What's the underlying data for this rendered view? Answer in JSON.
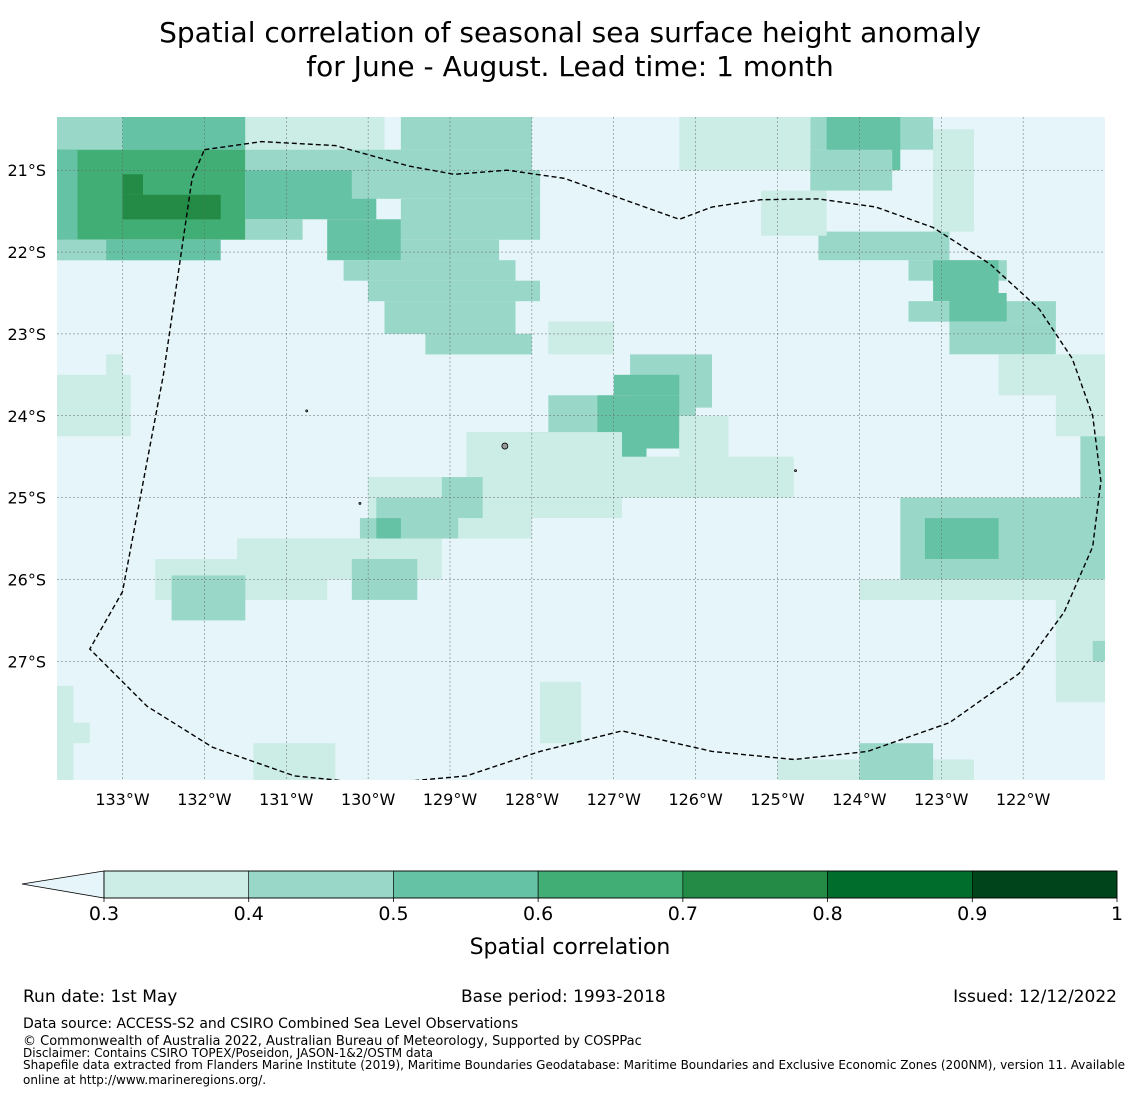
{
  "title": {
    "line1": "Spatial correlation of seasonal sea surface height anomaly",
    "line2": "for June - August. Lead time: 1 month"
  },
  "map": {
    "lon_range": [
      -133.8,
      -121.0
    ],
    "lat_range": [
      -28.45,
      -20.35
    ],
    "lon_ticks": [
      {
        "value": -133,
        "label": "133°W"
      },
      {
        "value": -132,
        "label": "132°W"
      },
      {
        "value": -131,
        "label": "131°W"
      },
      {
        "value": -130,
        "label": "130°W"
      },
      {
        "value": -129,
        "label": "129°W"
      },
      {
        "value": -128,
        "label": "128°W"
      },
      {
        "value": -127,
        "label": "127°W"
      },
      {
        "value": -126,
        "label": "126°W"
      },
      {
        "value": -125,
        "label": "125°W"
      },
      {
        "value": -124,
        "label": "124°W"
      },
      {
        "value": -123,
        "label": "123°W"
      },
      {
        "value": -122,
        "label": "122°W"
      }
    ],
    "lat_ticks": [
      {
        "value": -21,
        "label": "21°S"
      },
      {
        "value": -22,
        "label": "22°S"
      },
      {
        "value": -23,
        "label": "23°S"
      },
      {
        "value": -24,
        "label": "24°S"
      },
      {
        "value": -25,
        "label": "25°S"
      },
      {
        "value": -26,
        "label": "26°S"
      },
      {
        "value": -27,
        "label": "27°S"
      }
    ],
    "grid": true,
    "background_color": "#e5f5f9",
    "eez_boundary": [
      [
        -132.0,
        -20.75
      ],
      [
        -131.3,
        -20.65
      ],
      [
        -130.4,
        -20.7
      ],
      [
        -129.5,
        -20.95
      ],
      [
        -128.95,
        -21.05
      ],
      [
        -128.3,
        -21.0
      ],
      [
        -127.6,
        -21.1
      ],
      [
        -126.9,
        -21.35
      ],
      [
        -126.2,
        -21.6
      ],
      [
        -125.8,
        -21.45
      ],
      [
        -125.2,
        -21.36
      ],
      [
        -124.5,
        -21.35
      ],
      [
        -123.8,
        -21.45
      ],
      [
        -123.1,
        -21.7
      ],
      [
        -122.4,
        -22.15
      ],
      [
        -121.8,
        -22.7
      ],
      [
        -121.4,
        -23.3
      ],
      [
        -121.15,
        -24.0
      ],
      [
        -121.05,
        -24.8
      ],
      [
        -121.15,
        -25.6
      ],
      [
        -121.5,
        -26.4
      ],
      [
        -122.05,
        -27.15
      ],
      [
        -122.9,
        -27.75
      ],
      [
        -123.9,
        -28.1
      ],
      [
        -124.8,
        -28.2
      ],
      [
        -125.8,
        -28.1
      ],
      [
        -126.9,
        -27.85
      ],
      [
        -127.9,
        -28.1
      ],
      [
        -128.8,
        -28.4
      ],
      [
        -129.9,
        -28.5
      ],
      [
        -130.9,
        -28.4
      ],
      [
        -131.9,
        -28.05
      ],
      [
        -132.7,
        -27.55
      ],
      [
        -133.4,
        -26.85
      ],
      [
        -133.0,
        -26.15
      ],
      [
        -132.5,
        -23.5
      ],
      [
        -132.15,
        -21.1
      ],
      [
        -132.0,
        -20.75
      ]
    ],
    "islands": [
      {
        "lon": -128.33,
        "lat": -24.37,
        "size": 3
      },
      {
        "lon": -130.75,
        "lat": -23.94,
        "size": 1
      },
      {
        "lon": -130.1,
        "lat": -25.07,
        "size": 1
      },
      {
        "lon": -124.78,
        "lat": -24.67,
        "size": 1
      }
    ]
  },
  "chart_data": {
    "type": "heatmap",
    "x": "longitude",
    "y": "latitude",
    "value": "spatial correlation",
    "cell_deg": 0.25,
    "levels": [
      0.3,
      0.4,
      0.5,
      0.6,
      0.7,
      0.8,
      0.9,
      1.0
    ],
    "colors": [
      "#ccece6",
      "#99d8c9",
      "#66c2a4",
      "#41ae76",
      "#238b45",
      "#006d2c",
      "#00441b"
    ],
    "below_color": "#e5f5f9",
    "regions": [
      {
        "lon": [
          -133.8,
          -131.5
        ],
        "lat": [
          -20.75,
          -20.35
        ],
        "value": 0.45
      },
      {
        "lon": [
          -133.0,
          -131.5
        ],
        "lat": [
          -20.75,
          -20.35
        ],
        "value": 0.55
      },
      {
        "lon": [
          -131.5,
          -129.8
        ],
        "lat": [
          -20.75,
          -20.35
        ],
        "value": 0.35
      },
      {
        "lon": [
          -133.8,
          -131.5
        ],
        "lat": [
          -21.85,
          -20.75
        ],
        "value": 0.65
      },
      {
        "lon": [
          -133.0,
          -131.8
        ],
        "lat": [
          -21.6,
          -21.3
        ],
        "value": 0.75
      },
      {
        "lon": [
          -133.0,
          -132.75
        ],
        "lat": [
          -21.3,
          -21.05
        ],
        "value": 0.75
      },
      {
        "lon": [
          -133.8,
          -133.55
        ],
        "lat": [
          -21.85,
          -20.75
        ],
        "value": 0.55
      },
      {
        "lon": [
          -133.8,
          -133.2
        ],
        "lat": [
          -22.1,
          -21.85
        ],
        "value": 0.45
      },
      {
        "lon": [
          -133.2,
          -131.8
        ],
        "lat": [
          -22.1,
          -21.85
        ],
        "value": 0.55
      },
      {
        "lon": [
          -131.5,
          -129.9
        ],
        "lat": [
          -21.6,
          -21.0
        ],
        "value": 0.55
      },
      {
        "lon": [
          -131.5,
          -130.8
        ],
        "lat": [
          -21.85,
          -21.6
        ],
        "value": 0.45
      },
      {
        "lon": [
          -130.5,
          -129.6
        ],
        "lat": [
          -22.1,
          -21.6
        ],
        "value": 0.55
      },
      {
        "lon": [
          -131.5,
          -128.0
        ],
        "lat": [
          -21.0,
          -20.75
        ],
        "value": 0.45
      },
      {
        "lon": [
          -129.6,
          -128.0
        ],
        "lat": [
          -20.75,
          -20.35
        ],
        "value": 0.45
      },
      {
        "lon": [
          -130.2,
          -127.9
        ],
        "lat": [
          -21.35,
          -21.0
        ],
        "value": 0.45
      },
      {
        "lon": [
          -129.6,
          -127.9
        ],
        "lat": [
          -21.85,
          -21.35
        ],
        "value": 0.45
      },
      {
        "lon": [
          -129.6,
          -128.4
        ],
        "lat": [
          -22.1,
          -21.85
        ],
        "value": 0.45
      },
      {
        "lon": [
          -130.3,
          -128.2
        ],
        "lat": [
          -22.35,
          -22.1
        ],
        "value": 0.45
      },
      {
        "lon": [
          -130.0,
          -127.9
        ],
        "lat": [
          -22.6,
          -22.35
        ],
        "value": 0.45
      },
      {
        "lon": [
          -129.8,
          -128.2
        ],
        "lat": [
          -23.0,
          -22.6
        ],
        "value": 0.45
      },
      {
        "lon": [
          -129.3,
          -128.0
        ],
        "lat": [
          -23.25,
          -23.0
        ],
        "value": 0.45
      },
      {
        "lon": [
          -127.8,
          -127.0
        ],
        "lat": [
          -23.25,
          -22.85
        ],
        "value": 0.35
      },
      {
        "lon": [
          -126.8,
          -125.8
        ],
        "lat": [
          -23.9,
          -23.25
        ],
        "value": 0.45
      },
      {
        "lon": [
          -127.0,
          -126.2
        ],
        "lat": [
          -23.75,
          -23.5
        ],
        "value": 0.55
      },
      {
        "lon": [
          -127.8,
          -126.0
        ],
        "lat": [
          -24.2,
          -23.75
        ],
        "value": 0.45
      },
      {
        "lon": [
          -127.2,
          -126.2
        ],
        "lat": [
          -24.4,
          -23.75
        ],
        "value": 0.55
      },
      {
        "lon": [
          -127.5,
          -126.6
        ],
        "lat": [
          -24.75,
          -24.4
        ],
        "value": 0.55
      },
      {
        "lon": [
          -128.1,
          -127.1
        ],
        "lat": [
          -24.5,
          -24.2
        ],
        "value": 0.45
      },
      {
        "lon": [
          -127.9,
          -127.1
        ],
        "lat": [
          -24.75,
          -24.5
        ],
        "value": 0.45
      },
      {
        "lon": [
          -127.8,
          -126.9
        ],
        "lat": [
          -25.0,
          -24.75
        ],
        "value": 0.55
      },
      {
        "lon": [
          -126.9,
          -124.8
        ],
        "lat": [
          -25.0,
          -24.5
        ],
        "value": 0.35
      },
      {
        "lon": [
          -126.2,
          -125.6
        ],
        "lat": [
          -24.5,
          -24.0
        ],
        "value": 0.35
      },
      {
        "lon": [
          -128.8,
          -126.9
        ],
        "lat": [
          -25.25,
          -24.2
        ],
        "value": 0.35
      },
      {
        "lon": [
          -130.0,
          -128.0
        ],
        "lat": [
          -25.5,
          -24.75
        ],
        "value": 0.35
      },
      {
        "lon": [
          -129.1,
          -128.6
        ],
        "lat": [
          -25.25,
          -24.75
        ],
        "value": 0.45
      },
      {
        "lon": [
          -129.9,
          -128.9
        ],
        "lat": [
          -25.5,
          -25.0
        ],
        "value": 0.45
      },
      {
        "lon": [
          -130.1,
          -129.4
        ],
        "lat": [
          -25.75,
          -25.25
        ],
        "value": 0.45
      },
      {
        "lon": [
          -130.3,
          -129.8
        ],
        "lat": [
          -25.75,
          -25.5
        ],
        "value": 0.55
      },
      {
        "lon": [
          -129.9,
          -129.6
        ],
        "lat": [
          -26.0,
          -25.25
        ],
        "value": 0.55
      },
      {
        "lon": [
          -131.6,
          -129.1
        ],
        "lat": [
          -26.0,
          -25.5
        ],
        "value": 0.35
      },
      {
        "lon": [
          -130.2,
          -129.4
        ],
        "lat": [
          -26.25,
          -25.75
        ],
        "value": 0.45
      },
      {
        "lon": [
          -132.6,
          -130.5
        ],
        "lat": [
          -26.25,
          -25.75
        ],
        "value": 0.35
      },
      {
        "lon": [
          -132.4,
          -131.5
        ],
        "lat": [
          -26.5,
          -25.95
        ],
        "value": 0.45
      },
      {
        "lon": [
          -133.8,
          -132.9
        ],
        "lat": [
          -24.25,
          -23.5
        ],
        "value": 0.35
      },
      {
        "lon": [
          -133.2,
          -133.0
        ],
        "lat": [
          -23.5,
          -23.25
        ],
        "value": 0.35
      },
      {
        "lon": [
          -124.6,
          -123.1
        ],
        "lat": [
          -20.75,
          -20.35
        ],
        "value": 0.45
      },
      {
        "lon": [
          -126.2,
          -124.6
        ],
        "lat": [
          -21.0,
          -20.35
        ],
        "value": 0.35
      },
      {
        "lon": [
          -124.4,
          -123.5
        ],
        "lat": [
          -21.0,
          -20.35
        ],
        "value": 0.55
      },
      {
        "lon": [
          -124.6,
          -123.6
        ],
        "lat": [
          -21.25,
          -20.75
        ],
        "value": 0.45
      },
      {
        "lon": [
          -123.1,
          -122.6
        ],
        "lat": [
          -21.75,
          -20.5
        ],
        "value": 0.35
      },
      {
        "lon": [
          -124.5,
          -122.9
        ],
        "lat": [
          -22.1,
          -21.75
        ],
        "value": 0.45
      },
      {
        "lon": [
          -125.2,
          -124.4
        ],
        "lat": [
          -21.8,
          -21.25
        ],
        "value": 0.35
      },
      {
        "lon": [
          -123.4,
          -122.2
        ],
        "lat": [
          -22.35,
          -22.1
        ],
        "value": 0.45
      },
      {
        "lon": [
          -123.1,
          -122.3
        ],
        "lat": [
          -22.6,
          -22.1
        ],
        "value": 0.55
      },
      {
        "lon": [
          -123.4,
          -121.6
        ],
        "lat": [
          -22.85,
          -22.6
        ],
        "value": 0.45
      },
      {
        "lon": [
          -122.9,
          -122.2
        ],
        "lat": [
          -22.85,
          -22.5
        ],
        "value": 0.55
      },
      {
        "lon": [
          -122.9,
          -121.6
        ],
        "lat": [
          -23.25,
          -22.85
        ],
        "value": 0.45
      },
      {
        "lon": [
          -122.3,
          -121.0
        ],
        "lat": [
          -23.75,
          -23.25
        ],
        "value": 0.35
      },
      {
        "lon": [
          -121.6,
          -121.0
        ],
        "lat": [
          -24.25,
          -23.75
        ],
        "value": 0.35
      },
      {
        "lon": [
          -121.3,
          -121.0
        ],
        "lat": [
          -25.0,
          -24.25
        ],
        "value": 0.45
      },
      {
        "lon": [
          -123.5,
          -121.0
        ],
        "lat": [
          -26.0,
          -25.0
        ],
        "value": 0.45
      },
      {
        "lon": [
          -123.2,
          -122.3
        ],
        "lat": [
          -25.75,
          -25.25
        ],
        "value": 0.55
      },
      {
        "lon": [
          -124.0,
          -121.0
        ],
        "lat": [
          -26.25,
          -26.0
        ],
        "value": 0.35
      },
      {
        "lon": [
          -121.6,
          -121.0
        ],
        "lat": [
          -27.5,
          -26.25
        ],
        "value": 0.35
      },
      {
        "lon": [
          -121.15,
          -121.0
        ],
        "lat": [
          -27.0,
          -26.75
        ],
        "value": 0.45
      },
      {
        "lon": [
          -127.9,
          -127.4
        ],
        "lat": [
          -28.0,
          -27.25
        ],
        "value": 0.35
      },
      {
        "lon": [
          -133.8,
          -133.6
        ],
        "lat": [
          -28.45,
          -27.3
        ],
        "value": 0.35
      },
      {
        "lon": [
          -133.6,
          -133.4
        ],
        "lat": [
          -28.0,
          -27.75
        ],
        "value": 0.35
      },
      {
        "lon": [
          -131.4,
          -130.4
        ],
        "lat": [
          -28.45,
          -28.0
        ],
        "value": 0.35
      },
      {
        "lon": [
          -125.0,
          -122.6
        ],
        "lat": [
          -28.45,
          -28.2
        ],
        "value": 0.35
      },
      {
        "lon": [
          -124.0,
          -123.1
        ],
        "lat": [
          -28.45,
          -28.0
        ],
        "value": 0.45
      }
    ]
  },
  "colorbar": {
    "tick_labels": [
      "0.3",
      "0.4",
      "0.5",
      "0.6",
      "0.7",
      "0.8",
      "0.9",
      "1"
    ],
    "label": "Spatial correlation",
    "extend": "min"
  },
  "footer": {
    "run_date": "Run date: 1st May",
    "base_period": "Base period: 1993-2018",
    "issued": "Issued: 12/12/2022",
    "data_source": "Data source: ACCESS-S2 and CSIRO Combined Sea Level Observations",
    "copyright": "© Commonwealth of Australia 2022, Australian Bureau of Meteorology, Supported by COSPPac",
    "disclaimer": "Disclaimer: Contains CSIRO TOPEX/Poseidon, JASON-1&2/OSTM data",
    "shapefile_line1": "Shapefile data extracted from Flanders Marine Institute (2019), Maritime Boundaries Geodatabase: Maritime Boundaries and Exclusive Economic Zones (200NM), version 11. Available",
    "shapefile_line2": "online at http://www.marineregions.org/."
  }
}
